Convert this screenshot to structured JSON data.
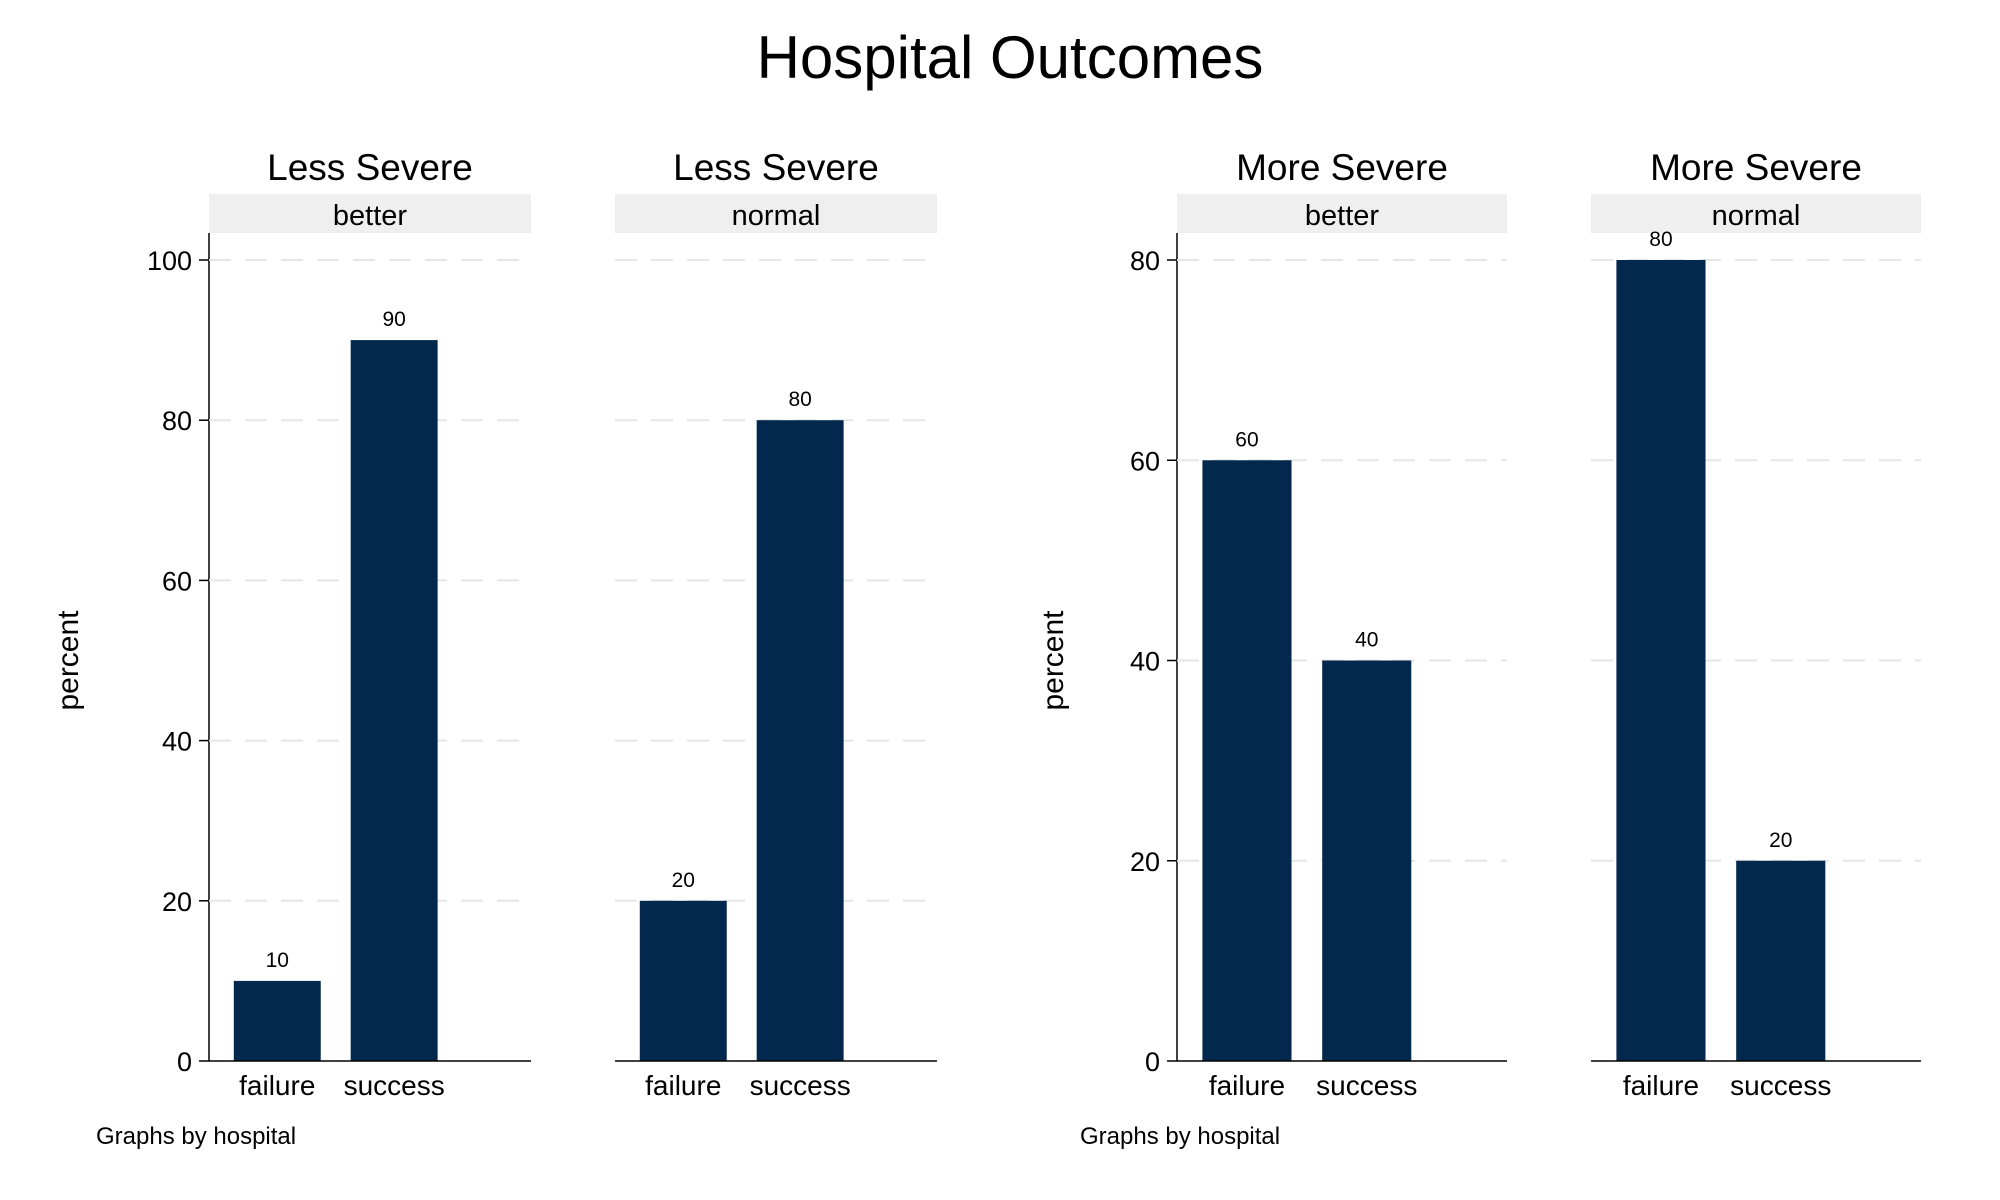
{
  "title": "Hospital Outcomes",
  "colors": {
    "bar": "#02284D",
    "strip": "#efefef",
    "grid": "#e6e6e6",
    "axis": "#000000"
  },
  "chart_data": [
    {
      "type": "bar",
      "title": "",
      "ylabel": "percent",
      "ylim": [
        0,
        100
      ],
      "yticks": [
        0,
        20,
        40,
        60,
        80,
        100
      ],
      "grid": true,
      "note": "Graphs by hospital",
      "panels": [
        {
          "header": "Less Severe",
          "strip": "better",
          "categories": [
            "failure",
            "success"
          ],
          "values": [
            10,
            90
          ],
          "value_labels": [
            "10",
            "90"
          ]
        },
        {
          "header": "Less Severe",
          "strip": "normal",
          "categories": [
            "failure",
            "success"
          ],
          "values": [
            20,
            80
          ],
          "value_labels": [
            "20",
            "80"
          ]
        }
      ]
    },
    {
      "type": "bar",
      "title": "",
      "ylabel": "percent",
      "ylim": [
        0,
        80
      ],
      "yticks": [
        0,
        20,
        40,
        60,
        80
      ],
      "grid": true,
      "note": "Graphs by hospital",
      "panels": [
        {
          "header": "More Severe",
          "strip": "better",
          "categories": [
            "failure",
            "success"
          ],
          "values": [
            60,
            40
          ],
          "value_labels": [
            "60",
            "40"
          ]
        },
        {
          "header": "More Severe",
          "strip": "normal",
          "categories": [
            "failure",
            "success"
          ],
          "values": [
            80,
            20
          ],
          "value_labels": [
            "80",
            "20"
          ]
        }
      ]
    }
  ]
}
